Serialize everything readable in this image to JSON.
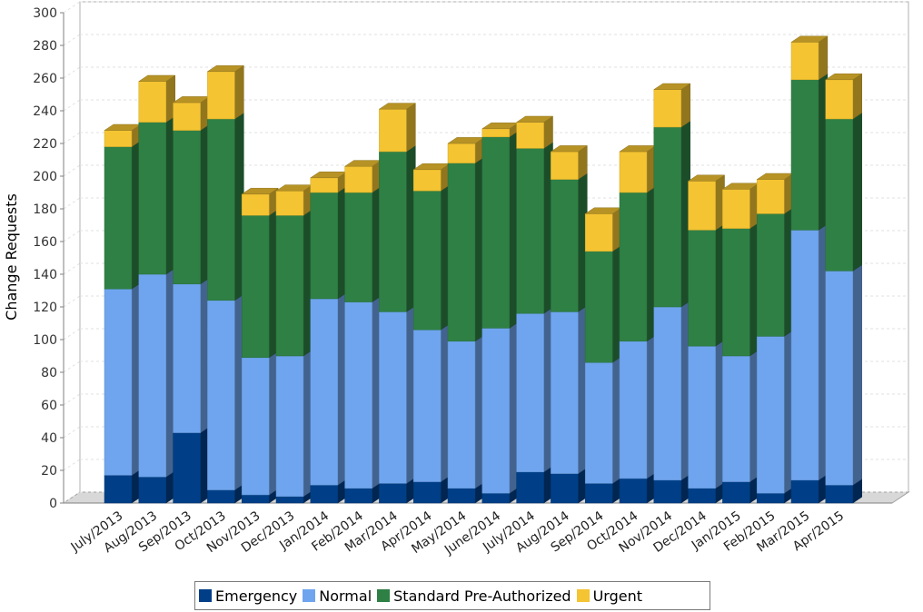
{
  "chart_data": {
    "type": "bar",
    "stacked": true,
    "style": "3d",
    "title": "",
    "xlabel": "",
    "ylabel": "Change Requests",
    "ylim": [
      0,
      300
    ],
    "yticks": [
      0,
      20,
      40,
      60,
      80,
      100,
      120,
      140,
      160,
      180,
      200,
      220,
      240,
      260,
      280,
      300
    ],
    "grid": true,
    "legend_position": "bottom",
    "categories": [
      "July/2013",
      "Aug/2013",
      "Sep/2013",
      "Oct/2013",
      "Nov/2013",
      "Dec/2013",
      "Jan/2014",
      "Feb/2014",
      "Mar/2014",
      "Apr/2014",
      "May/2014",
      "June/2014",
      "July/2014",
      "Aug/2014",
      "Sep/2014",
      "Oct/2014",
      "Nov/2014",
      "Dec/2014",
      "Jan/2015",
      "Feb/2015",
      "Mar/2015",
      "Apr/2015"
    ],
    "series": [
      {
        "name": "Emergency",
        "color": "#003f87",
        "values": [
          17,
          16,
          43,
          8,
          5,
          4,
          11,
          9,
          12,
          13,
          9,
          6,
          19,
          18,
          12,
          15,
          14,
          9,
          13,
          6,
          14,
          11
        ]
      },
      {
        "name": "Normal",
        "color": "#6fa5ee",
        "values": [
          114,
          124,
          91,
          116,
          84,
          86,
          114,
          114,
          105,
          93,
          90,
          101,
          97,
          99,
          74,
          84,
          106,
          87,
          77,
          96,
          153,
          131
        ]
      },
      {
        "name": "Standard Pre-Authorized",
        "color": "#2f8045",
        "values": [
          87,
          93,
          94,
          111,
          87,
          86,
          65,
          67,
          98,
          85,
          109,
          117,
          101,
          81,
          68,
          91,
          110,
          71,
          78,
          75,
          92,
          93
        ]
      },
      {
        "name": "Urgent",
        "color": "#f4c432",
        "values": [
          10,
          25,
          17,
          29,
          13,
          15,
          9,
          16,
          26,
          13,
          12,
          5,
          16,
          17,
          23,
          25,
          23,
          30,
          24,
          21,
          23,
          24
        ]
      }
    ]
  }
}
